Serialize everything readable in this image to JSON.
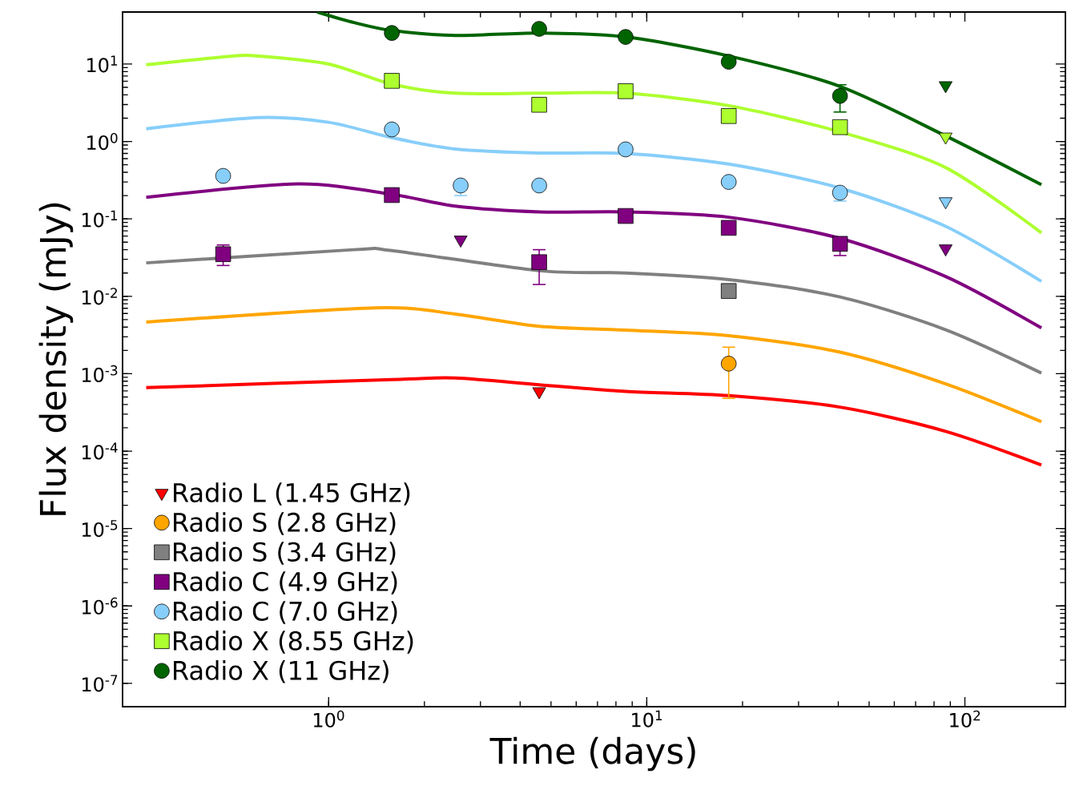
{
  "chart_data": {
    "type": "scatter",
    "xlabel": "Time (days)",
    "ylabel": "Flux density (mJy)",
    "log": "xy",
    "legend": "bottom left",
    "grid": false,
    "xlim": [
      0.225,
      207
    ],
    "ylim": [
      5e-08,
      47
    ],
    "xticks": [
      {
        "value": 1,
        "label": "10$^{0}$"
      },
      {
        "value": 10,
        "label": "10$^{1}$"
      },
      {
        "value": 100,
        "label": "10$^{2}$"
      }
    ],
    "yticks": [
      {
        "value": 1e-07,
        "label": "10$^{-7}$"
      },
      {
        "value": 1e-06,
        "label": "10$^{-6}$"
      },
      {
        "value": 1e-05,
        "label": "10$^{-5}$"
      },
      {
        "value": 0.0001,
        "label": "10$^{-4}$"
      },
      {
        "value": 0.001,
        "label": "10$^{-3}$"
      },
      {
        "value": 0.01,
        "label": "10$^{-2}$"
      },
      {
        "value": 0.1,
        "label": "10$^{-1}$"
      },
      {
        "value": 1,
        "label": "10$^{0}$"
      },
      {
        "value": 10,
        "label": "10$^{1}$"
      }
    ],
    "series": [
      {
        "type": "line",
        "marker": "none",
        "color": "#ff0000",
        "x": [
          0.267,
          1.58,
          2.5,
          4.59,
          8.58,
          18.1,
          40.5,
          87,
          174
        ],
        "values": [
          0.00066,
          0.00084,
          0.00088,
          0.00072,
          0.00059,
          0.00052,
          0.00037,
          0.00018,
          6.6e-05
        ]
      },
      {
        "type": "line",
        "marker": "none",
        "color": "#ffa500",
        "x": [
          0.267,
          1.4,
          2.5,
          4.59,
          8.58,
          18.1,
          40.5,
          87,
          174
        ],
        "values": [
          0.00465,
          0.0071,
          0.0059,
          0.0041,
          0.00366,
          0.0031,
          0.0019,
          0.00074,
          0.00024
        ]
      },
      {
        "type": "line",
        "marker": "none",
        "color": "#808080",
        "x": [
          0.267,
          1.2,
          1.58,
          4.59,
          8.58,
          18.1,
          40.5,
          87,
          174
        ],
        "values": [
          0.027,
          0.04,
          0.039,
          0.0214,
          0.02,
          0.0164,
          0.0098,
          0.0037,
          0.00102
        ]
      },
      {
        "type": "line",
        "marker": "none",
        "color": "#800080",
        "x": [
          0.267,
          0.8,
          1.58,
          2.5,
          4.59,
          8.58,
          18.1,
          40.5,
          87,
          174
        ],
        "values": [
          0.19,
          0.283,
          0.208,
          0.146,
          0.123,
          0.123,
          0.105,
          0.056,
          0.018,
          0.0039
        ]
      },
      {
        "type": "line",
        "marker": "none",
        "color": "#87cefa",
        "x": [
          0.267,
          0.6,
          1.0,
          1.58,
          2.5,
          4.59,
          8.58,
          18.1,
          40.5,
          87,
          174
        ],
        "values": [
          1.46,
          2.04,
          1.77,
          1.12,
          0.8,
          0.71,
          0.7,
          0.51,
          0.25,
          0.08,
          0.0156
        ]
      },
      {
        "type": "line",
        "marker": "none",
        "color": "#adff2f",
        "x": [
          0.267,
          0.5,
          0.6,
          1.0,
          1.58,
          2.5,
          4.59,
          8.58,
          18.1,
          40.5,
          87,
          174
        ],
        "values": [
          9.8,
          12.7,
          12.7,
          10,
          5.5,
          4.2,
          4.2,
          4.2,
          2.9,
          1.33,
          0.46,
          0.066
        ]
      },
      {
        "type": "line",
        "marker": "none",
        "color": "#006400",
        "x": [
          0.92,
          1.2,
          1.58,
          2.5,
          4.59,
          8.58,
          18.1,
          40.5,
          87,
          174
        ],
        "values": [
          47,
          34.4,
          27.1,
          23.4,
          25.2,
          22.4,
          12.7,
          5.14,
          1.18,
          0.277
        ]
      },
      {
        "name": "Radio L (1.45 GHz)",
        "marker": "triangle",
        "color": "#ff0000",
        "x": [
          4.59
        ],
        "values": [
          0.00059
        ]
      },
      {
        "name": "Radio S (2.8 GHz)",
        "marker": "circle",
        "color": "#ffa500",
        "x": [
          18.1
        ],
        "values": [
          0.00135
        ],
        "errors": [
          [
            0.00048,
            0.0022
          ]
        ]
      },
      {
        "name": "Radio S (3.4 GHz)",
        "marker": "square",
        "color": "#808080",
        "x": [
          18.1
        ],
        "values": [
          0.0117
        ]
      },
      {
        "name": "Radio C (4.9 GHz)",
        "marker": "square",
        "color": "#800080",
        "x": [
          0.466,
          1.58,
          4.59,
          8.58,
          18.1,
          40.5
        ],
        "values": [
          0.035,
          0.203,
          0.0276,
          0.109,
          0.0766,
          0.0476
        ],
        "errors": [
          [
            0.025,
            0.046
          ],
          null,
          [
            0.0142,
            0.04
          ],
          null,
          null,
          [
            0.0336,
            0.05
          ]
        ]
      },
      {
        "name": "Radio C (7.0 GHz)",
        "marker": "circle",
        "color": "#87cefa",
        "x": [
          0.466,
          1.58,
          2.6,
          4.59,
          8.58,
          18.1,
          40.5
        ],
        "values": [
          0.359,
          1.43,
          0.27,
          0.27,
          0.79,
          0.3,
          0.218
        ],
        "errors": [
          null,
          null,
          [
            0.2,
            0.28
          ],
          null,
          null,
          null,
          [
            0.17,
            0.22
          ]
        ]
      },
      {
        "name": "Radio X (8.55 GHz)",
        "marker": "square",
        "color": "#adff2f",
        "x": [
          1.58,
          4.59,
          8.58,
          18.1,
          40.5
        ],
        "values": [
          6.07,
          2.98,
          4.46,
          2.13,
          1.53
        ]
      },
      {
        "name": "Radio X (11 GHz)",
        "marker": "circle",
        "color": "#006400",
        "x": [
          1.58,
          4.59,
          8.58,
          18.1,
          40.5
        ],
        "values": [
          25.2,
          28.5,
          22.4,
          10.7,
          3.87
        ],
        "errors": [
          null,
          null,
          null,
          null,
          [
            2.4,
            5.4
          ]
        ]
      },
      {
        "marker": "triangle",
        "color": "#800080",
        "x": [
          2.6,
          87
        ],
        "values": [
          0.0537,
          0.0413
        ]
      },
      {
        "marker": "triangle",
        "color": "#87cefa",
        "x": [
          87
        ],
        "values": [
          0.168
        ]
      },
      {
        "marker": "triangle",
        "color": "#adff2f",
        "x": [
          87
        ],
        "values": [
          1.15
        ]
      },
      {
        "marker": "triangle",
        "color": "#006400",
        "x": [
          87
        ],
        "values": [
          5.3
        ]
      }
    ]
  }
}
